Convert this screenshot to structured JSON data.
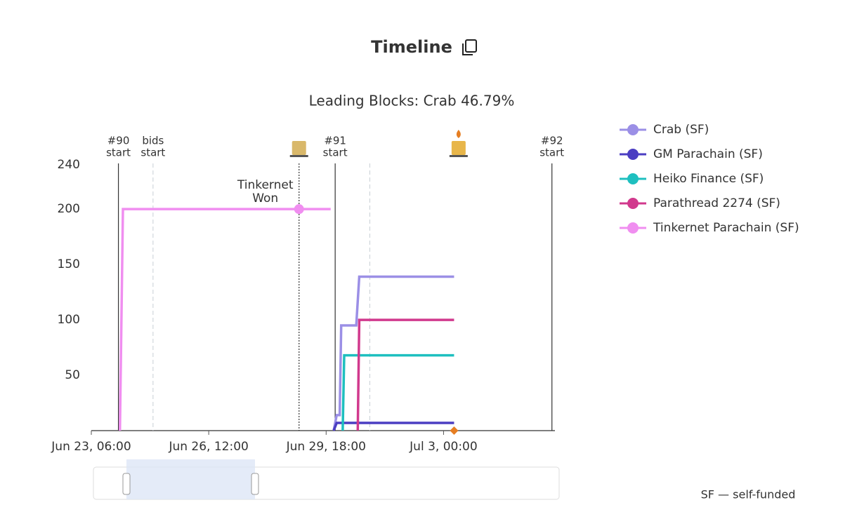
{
  "chart_data": {
    "type": "line",
    "title": "Timeline",
    "subtitle": "Leading Blocks: Crab 46.79%",
    "xlim": [
      "06-23T06:00",
      "07-06T02:00"
    ],
    "xticks": [
      {
        "value": "06-23T06:00",
        "label": "Jun 23, 06:00"
      },
      {
        "value": "06-26T12:00",
        "label": "Jun 26, 12:00"
      },
      {
        "value": "06-29T18:00",
        "label": "Jun 29, 18:00"
      },
      {
        "value": "07-03T00:00",
        "label": "Jul 3, 00:00"
      }
    ],
    "ylim": [
      0,
      240
    ],
    "yticks": [
      50,
      100,
      150,
      200,
      240
    ],
    "series": [
      {
        "name": "Crab (SF)",
        "color": "#9b8fe6",
        "x": [
          "06-29T23:00",
          "06-30T01:00",
          "06-30T03:00",
          "06-30T04:00",
          "06-30T14:00",
          "06-30T16:00",
          "07-03T07:00"
        ],
        "values": [
          0,
          14,
          14,
          95,
          95,
          139,
          139
        ]
      },
      {
        "name": "GM Parachain (SF)",
        "color": "#4b3ec2",
        "x": [
          "06-29T23:00",
          "06-30T01:00",
          "07-03T07:00"
        ],
        "values": [
          0,
          7,
          7
        ]
      },
      {
        "name": "Heiko Finance (SF)",
        "color": "#1ebfbf",
        "x": [
          "06-30T05:00",
          "06-30T06:00",
          "07-03T07:00"
        ],
        "values": [
          0,
          68,
          68
        ]
      },
      {
        "name": "Parathread 2274 (SF)",
        "color": "#d1398d",
        "x": [
          "06-30T15:00",
          "06-30T16:00",
          "07-03T07:00"
        ],
        "values": [
          0,
          100,
          100
        ]
      },
      {
        "name": "Tinkernet Parachain (SF)",
        "color": "#f08ef0",
        "x": [
          "06-24T01:00",
          "06-24T03:00",
          "06-29T21:00"
        ],
        "values": [
          0,
          200,
          200
        ]
      }
    ],
    "markers": [
      {
        "x": "06-24T00:00",
        "style": "solid",
        "label": [
          "#90",
          "start"
        ]
      },
      {
        "x": "06-24T23:00",
        "style": "dashed",
        "label": [
          "bids",
          "start"
        ]
      },
      {
        "x": "06-29T00:00",
        "style": "dotted",
        "icon": "candle",
        "lit": false
      },
      {
        "x": "06-30T00:00",
        "style": "solid",
        "label": [
          "#91",
          "start"
        ]
      },
      {
        "x": "06-30T23:00",
        "style": "dashed"
      },
      {
        "x": "07-03T10:00",
        "icon": "candle",
        "lit": true
      },
      {
        "x": "07-06T00:00",
        "style": "solid",
        "label": [
          "#92",
          "start"
        ]
      },
      {
        "x": "07-03T07:00",
        "shape": "diamond",
        "color": "#e67e22"
      }
    ],
    "annotation": {
      "text": [
        "Tinkernet",
        "Won"
      ],
      "x": "06-29T00:00",
      "y": 200,
      "color": "#f08ef0"
    },
    "footnote": "SF — self-funded"
  }
}
